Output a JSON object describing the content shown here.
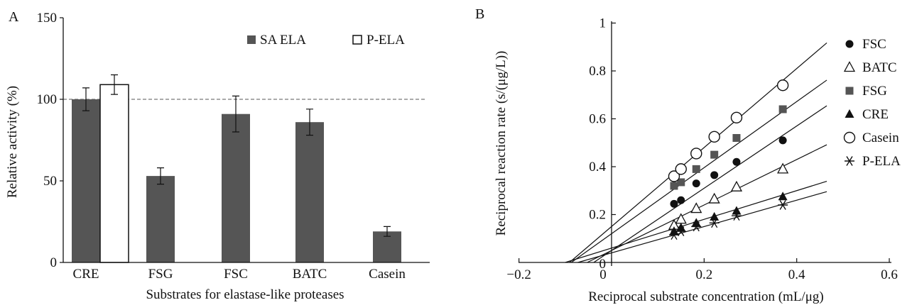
{
  "panels": {
    "a": {
      "letter": "A"
    },
    "b": {
      "letter": "B"
    }
  },
  "colors": {
    "bar_fill": "#555555",
    "marker_dark": "#111111",
    "marker_gray": "#555555"
  },
  "chart_data": [
    {
      "type": "bar",
      "title": "",
      "xlabel": "Substrates for elastase-like proteases",
      "ylabel": "Relative activity (%)",
      "ylim": [
        0,
        150
      ],
      "yticks": [
        0,
        50,
        100,
        150
      ],
      "reference_line": 100,
      "categories": [
        "CRE",
        "FSG",
        "FSC",
        "BATC",
        "Casein"
      ],
      "series": [
        {
          "name": "SA ELA",
          "values": [
            100,
            53,
            91,
            86,
            19
          ],
          "errors": [
            7,
            5,
            11,
            8,
            3
          ]
        },
        {
          "name": "P-ELA",
          "values": [
            109,
            null,
            null,
            null,
            null
          ],
          "errors": [
            6,
            null,
            null,
            null,
            null
          ]
        }
      ],
      "legend": [
        "SA ELA",
        "P-ELA"
      ],
      "legend_position": "top-right",
      "grid": false
    },
    {
      "type": "scatter",
      "title": "",
      "xlabel": "Reciprocal substrate concentration (mL/μg)",
      "ylabel": "Reciprocal reaction rate (s/(μg/L))",
      "xlim": [
        -0.2,
        0.6
      ],
      "ylim": [
        0,
        1
      ],
      "xticks": [
        "−0.2",
        "0",
        "0.2",
        "0.4",
        "0.6"
      ],
      "yticks": [
        "0",
        "0.2",
        "0.4",
        "0.6",
        "0.8",
        "1"
      ],
      "legend_position": "right",
      "grid": false,
      "series": [
        {
          "name": "FSC",
          "marker": "filled-circle",
          "x": [
            0.135,
            0.15,
            0.183,
            0.222,
            0.27,
            0.37
          ],
          "y": [
            0.245,
            0.26,
            0.33,
            0.365,
            0.42,
            0.51
          ],
          "fit": {
            "slope": 1.3,
            "intercept": 0.05
          }
        },
        {
          "name": "BATC",
          "marker": "open-triangle",
          "x": [
            0.135,
            0.15,
            0.183,
            0.222,
            0.27,
            0.37
          ],
          "y": [
            0.155,
            0.18,
            0.225,
            0.265,
            0.315,
            0.39
          ],
          "fit": {
            "slope": 0.95,
            "intercept": 0.05
          }
        },
        {
          "name": "FSG",
          "marker": "filled-square",
          "x": [
            0.135,
            0.15,
            0.183,
            0.222,
            0.27,
            0.37
          ],
          "y": [
            0.32,
            0.335,
            0.39,
            0.45,
            0.52,
            0.64
          ],
          "fit": {
            "slope": 1.38,
            "intercept": 0.12
          }
        },
        {
          "name": "CRE",
          "marker": "filled-triangle",
          "x": [
            0.135,
            0.15,
            0.183,
            0.222,
            0.27,
            0.37
          ],
          "y": [
            0.13,
            0.145,
            0.165,
            0.19,
            0.215,
            0.275
          ],
          "fit": {
            "slope": 0.6,
            "intercept": 0.06
          }
        },
        {
          "name": "Casein",
          "marker": "open-circle",
          "x": [
            0.135,
            0.15,
            0.183,
            0.222,
            0.27,
            0.37
          ],
          "y": [
            0.36,
            0.39,
            0.455,
            0.525,
            0.605,
            0.74
          ],
          "fit": {
            "slope": 1.65,
            "intercept": 0.15
          }
        },
        {
          "name": "P-ELA",
          "marker": "asterisk",
          "x": [
            0.135,
            0.15,
            0.183,
            0.222,
            0.27,
            0.37
          ],
          "y": [
            0.115,
            0.13,
            0.15,
            0.165,
            0.195,
            0.24
          ],
          "fit": {
            "slope": 0.55,
            "intercept": 0.04
          }
        }
      ]
    }
  ]
}
